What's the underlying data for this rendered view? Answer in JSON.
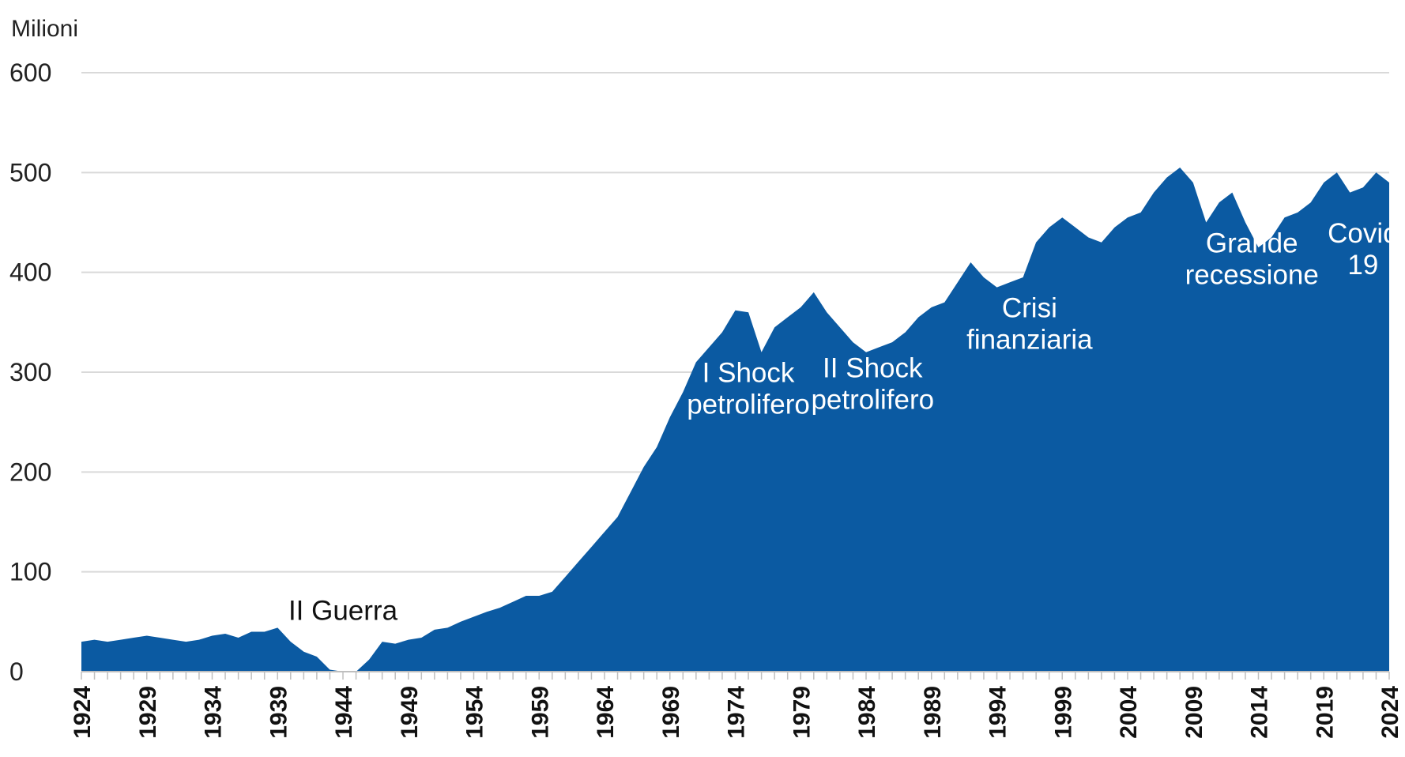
{
  "chart_data": {
    "type": "area",
    "ylabel": "Milioni",
    "ylim": [
      0,
      600
    ],
    "yticks": [
      0,
      100,
      200,
      300,
      400,
      500,
      600
    ],
    "xlim": [
      1924,
      2024
    ],
    "xticks": [
      1924,
      1929,
      1934,
      1939,
      1944,
      1949,
      1954,
      1959,
      1964,
      1969,
      1974,
      1979,
      1984,
      1989,
      1994,
      1999,
      2004,
      2009,
      2014,
      2019,
      2024
    ],
    "grid": true,
    "color": "#0b5aa2",
    "series": [
      {
        "x": [
          1924,
          1925,
          1926,
          1927,
          1928,
          1929,
          1930,
          1931,
          1932,
          1933,
          1934,
          1935,
          1936,
          1937,
          1938,
          1939,
          1940,
          1941,
          1942,
          1943,
          1944,
          1945,
          1946,
          1947,
          1948,
          1949,
          1950,
          1951,
          1952,
          1953,
          1954,
          1955,
          1956,
          1957,
          1958,
          1959,
          1960,
          1961,
          1962,
          1963,
          1964,
          1965,
          1966,
          1967,
          1968,
          1969,
          1970,
          1971,
          1972,
          1973,
          1974,
          1975,
          1976,
          1977,
          1978,
          1979,
          1980,
          1981,
          1982,
          1983,
          1984,
          1985,
          1986,
          1987,
          1988,
          1989,
          1990,
          1991,
          1992,
          1993,
          1994,
          1995,
          1996,
          1997,
          1998,
          1999,
          2000,
          2001,
          2002,
          2003,
          2004,
          2005,
          2006,
          2007,
          2008,
          2009,
          2010,
          2011,
          2012,
          2013,
          2014,
          2015,
          2016,
          2017,
          2018,
          2019,
          2020,
          2021,
          2022,
          2023,
          2024
        ],
        "values": [
          30,
          32,
          30,
          32,
          34,
          36,
          34,
          32,
          30,
          32,
          36,
          38,
          34,
          40,
          40,
          44,
          30,
          20,
          15,
          2,
          0,
          0,
          12,
          30,
          28,
          32,
          34,
          42,
          44,
          50,
          55,
          60,
          64,
          70,
          76,
          76,
          80,
          95,
          110,
          125,
          140,
          155,
          180,
          205,
          225,
          255,
          280,
          310,
          325,
          340,
          362,
          360,
          320,
          345,
          355,
          365,
          380,
          360,
          345,
          330,
          320,
          325,
          330,
          340,
          355,
          365,
          370,
          390,
          410,
          395,
          385,
          390,
          395,
          430,
          445,
          455,
          445,
          435,
          430,
          445,
          455,
          460,
          480,
          495,
          505,
          490,
          450,
          470,
          480,
          450,
          425,
          435,
          455,
          460,
          470,
          490,
          500,
          480,
          485,
          500,
          490
        ],
        "comment_unused": ""
      }
    ],
    "annotations": [
      {
        "lines": [
          "II Guerra"
        ],
        "x": 1944,
        "y": 52,
        "color": "dark"
      },
      {
        "lines": [
          "I Shock",
          "petrolifero"
        ],
        "x": 1975,
        "y": 290,
        "color": "light"
      },
      {
        "lines": [
          "II Shock",
          "petrolifero"
        ],
        "x": 1984.5,
        "y": 295,
        "color": "light"
      },
      {
        "lines": [
          "Crisi",
          "finanziaria"
        ],
        "x": 1996.5,
        "y": 355,
        "color": "light"
      },
      {
        "lines": [
          "Grande",
          "recessione"
        ],
        "x": 2013.5,
        "y": 420,
        "color": "light"
      },
      {
        "lines": [
          "Covid",
          "19"
        ],
        "x": 2022,
        "y": 430,
        "color": "light"
      }
    ]
  }
}
